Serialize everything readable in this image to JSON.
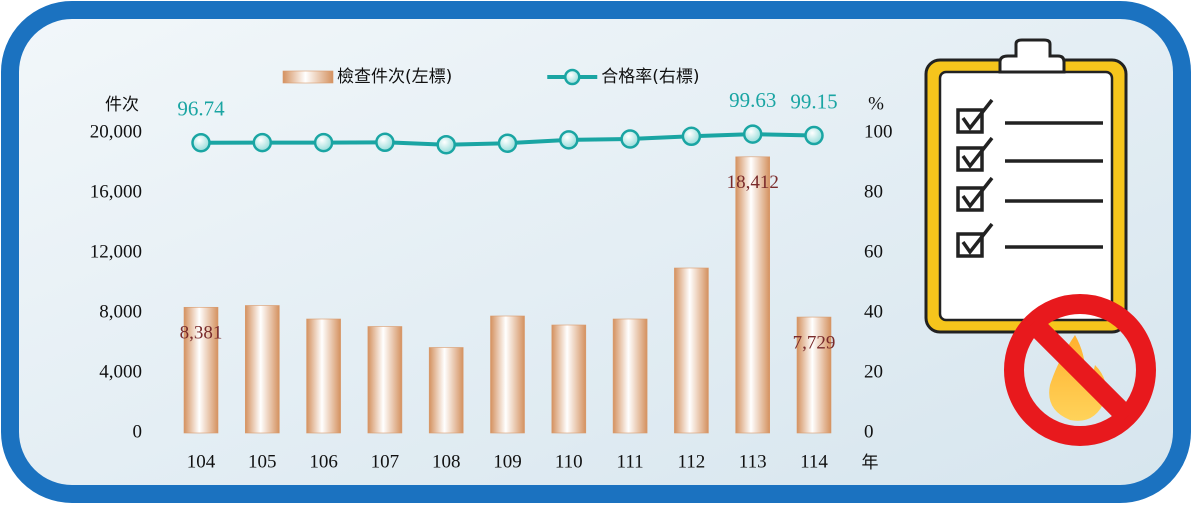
{
  "chart_data": {
    "type": "bar",
    "categories": [
      "104",
      "105",
      "106",
      "107",
      "108",
      "109",
      "110",
      "111",
      "112",
      "113",
      "114"
    ],
    "x_label": "年",
    "y_label": "件次",
    "y2_label": "%",
    "ylim": [
      0,
      20000
    ],
    "yticks": [
      0,
      {
        "value": 4000,
        "label": "4,000"
      },
      {
        "value": 8000,
        "label": "8,000"
      },
      {
        "value": 12000,
        "label": "12,000"
      },
      {
        "value": 16000,
        "label": "16,000"
      },
      {
        "value": 20000,
        "label": "20,000"
      }
    ],
    "y2lim": [
      0,
      100
    ],
    "y2ticks": [
      0,
      20,
      40,
      60,
      80,
      100
    ],
    "legend": "top",
    "series": [
      {
        "name": "檢查件次(左標)",
        "type": "bar",
        "color": "#d99a6c",
        "values": [
          8381,
          8500,
          7600,
          7100,
          5700,
          7800,
          7200,
          7600,
          11000,
          18412,
          7729
        ],
        "value_labels": [
          "8,381",
          null,
          null,
          null,
          null,
          null,
          null,
          null,
          null,
          "18,412",
          "7,729"
        ],
        "label_color": "#7a2b2b"
      },
      {
        "name": "合格率(右標)",
        "type": "line",
        "axis": "y2",
        "color": "#1aa5a3",
        "values": [
          96.74,
          96.8,
          96.8,
          96.9,
          96.1,
          96.6,
          97.7,
          98.0,
          98.9,
          99.63,
          99.15
        ],
        "value_labels": [
          "96.74",
          null,
          null,
          null,
          null,
          null,
          null,
          null,
          null,
          "99.63",
          "99.15"
        ],
        "label_color": "#1aa5a3"
      }
    ]
  }
}
